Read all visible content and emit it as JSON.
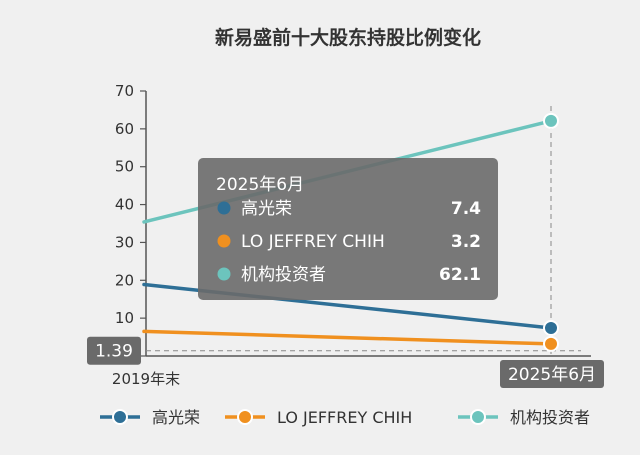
{
  "chart_data": {
    "type": "line",
    "title": "新易盛前十大股东持股比例变化",
    "x": [
      "2019年末",
      "2025年6月"
    ],
    "ylim": [
      0,
      70
    ],
    "yticks": [
      0,
      10,
      20,
      30,
      40,
      50,
      60,
      70
    ],
    "grid": false,
    "legend_position": "bottom",
    "series": [
      {
        "name": "高光荣",
        "values": [
          18.9,
          7.4
        ],
        "color": "#2e6f96"
      },
      {
        "name": "LO JEFFREY CHIH",
        "values": [
          6.5,
          3.2
        ],
        "color": "#f0901f"
      },
      {
        "name": "机构投资者",
        "values": [
          35.4,
          62.1
        ],
        "color": "#6cc4bd"
      }
    ],
    "crosshair": {
      "y_label": "1.39",
      "x_label": "2025年6月"
    },
    "tooltip": {
      "title": "2025年6月",
      "rows": [
        {
          "name": "高光荣",
          "value": "7.4",
          "color": "#2e6f96"
        },
        {
          "name": "LO JEFFREY CHIH",
          "value": "3.2",
          "color": "#f0901f"
        },
        {
          "name": "机构投资者",
          "value": "62.1",
          "color": "#6cc4bd"
        }
      ]
    }
  }
}
